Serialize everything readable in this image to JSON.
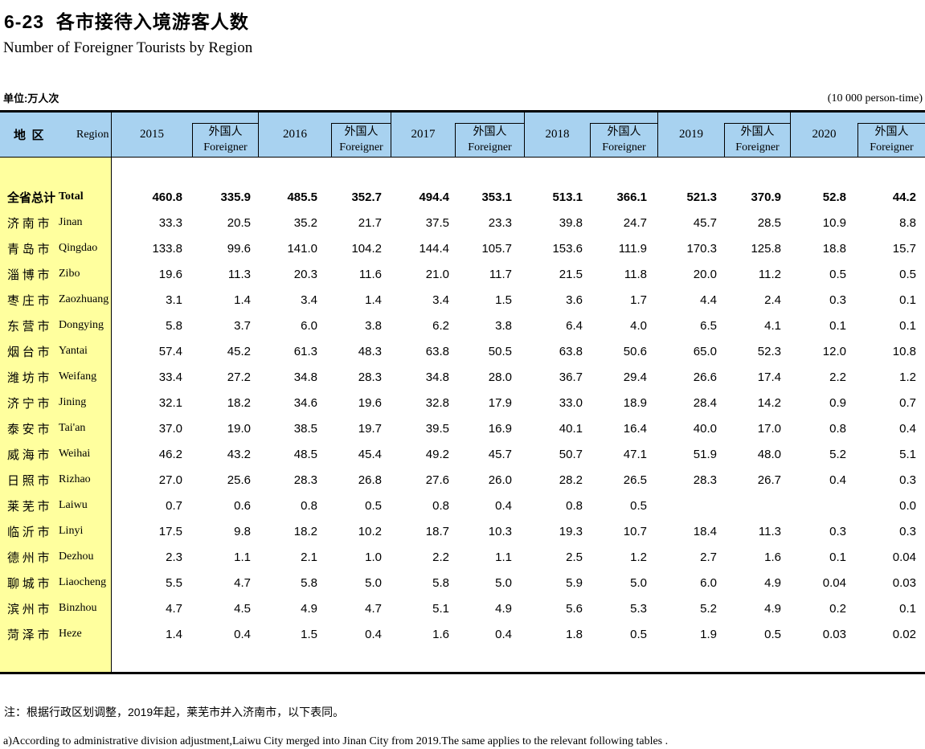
{
  "page": {
    "title_cn": "6-23  各市接待入境游客人数",
    "title_en": "Number of Foreigner Tourists by Region",
    "unit_left": "单位:万人次",
    "unit_right": "(10 000 person-time)",
    "note_cn": "注：根据行政区划调整，2019年起，莱芜市并入济南市，以下表同。",
    "note_en": "a)According to administrative division adjustment,Laiwu City merged into Jinan City from 2019.The same applies to the relevant following tables ."
  },
  "colors": {
    "header_bg": "#a8d2f0",
    "region_bg": "#ffff9e",
    "rule": "#000000"
  },
  "table": {
    "region_header": {
      "cn": "地  区",
      "en": "Region"
    },
    "year_groups": [
      {
        "year": "2015",
        "foreigner_cn": "外国人",
        "foreigner_en": "Foreigner"
      },
      {
        "year": "2016",
        "foreigner_cn": "外国人",
        "foreigner_en": "Foreigner"
      },
      {
        "year": "2017",
        "foreigner_cn": "外国人",
        "foreigner_en": "Foreigner"
      },
      {
        "year": "2018",
        "foreigner_cn": "外国人",
        "foreigner_en": "Foreigner"
      },
      {
        "year": "2019",
        "foreigner_cn": "外国人",
        "foreigner_en": "Foreigner"
      },
      {
        "year": "2020",
        "foreigner_cn": "外国人",
        "foreigner_en": "Foreigner"
      }
    ],
    "rows": [
      {
        "region_cn": "全省总计",
        "region_en": "Total",
        "bold": true,
        "values": [
          "460.8",
          "335.9",
          "485.5",
          "352.7",
          "494.4",
          "353.1",
          "513.1",
          "366.1",
          "521.3",
          "370.9",
          "52.8",
          "44.2"
        ]
      },
      {
        "region_cn": "济 南 市",
        "region_en": "Jinan",
        "bold": false,
        "values": [
          "33.3",
          "20.5",
          "35.2",
          "21.7",
          "37.5",
          "23.3",
          "39.8",
          "24.7",
          "45.7",
          "28.5",
          "10.9",
          "8.8"
        ]
      },
      {
        "region_cn": "青 岛 市",
        "region_en": "Qingdao",
        "bold": false,
        "values": [
          "133.8",
          "99.6",
          "141.0",
          "104.2",
          "144.4",
          "105.7",
          "153.6",
          "111.9",
          "170.3",
          "125.8",
          "18.8",
          "15.7"
        ]
      },
      {
        "region_cn": "淄 博 市",
        "region_en": "Zibo",
        "bold": false,
        "values": [
          "19.6",
          "11.3",
          "20.3",
          "11.6",
          "21.0",
          "11.7",
          "21.5",
          "11.8",
          "20.0",
          "11.2",
          "0.5",
          "0.5"
        ]
      },
      {
        "region_cn": "枣 庄 市",
        "region_en": "Zaozhuang",
        "bold": false,
        "values": [
          "3.1",
          "1.4",
          "3.4",
          "1.4",
          "3.4",
          "1.5",
          "3.6",
          "1.7",
          "4.4",
          "2.4",
          "0.3",
          "0.1"
        ]
      },
      {
        "region_cn": "东 营 市",
        "region_en": "Dongying",
        "bold": false,
        "values": [
          "5.8",
          "3.7",
          "6.0",
          "3.8",
          "6.2",
          "3.8",
          "6.4",
          "4.0",
          "6.5",
          "4.1",
          "0.1",
          "0.1"
        ]
      },
      {
        "region_cn": "烟 台 市",
        "region_en": "Yantai",
        "bold": false,
        "values": [
          "57.4",
          "45.2",
          "61.3",
          "48.3",
          "63.8",
          "50.5",
          "63.8",
          "50.6",
          "65.0",
          "52.3",
          "12.0",
          "10.8"
        ]
      },
      {
        "region_cn": "潍 坊 市",
        "region_en": "Weifang",
        "bold": false,
        "values": [
          "33.4",
          "27.2",
          "34.8",
          "28.3",
          "34.8",
          "28.0",
          "36.7",
          "29.4",
          "26.6",
          "17.4",
          "2.2",
          "1.2"
        ]
      },
      {
        "region_cn": "济 宁 市",
        "region_en": "Jining",
        "bold": false,
        "values": [
          "32.1",
          "18.2",
          "34.6",
          "19.6",
          "32.8",
          "17.9",
          "33.0",
          "18.9",
          "28.4",
          "14.2",
          "0.9",
          "0.7"
        ]
      },
      {
        "region_cn": "泰 安 市",
        "region_en": "Tai'an",
        "bold": false,
        "values": [
          "37.0",
          "19.0",
          "38.5",
          "19.7",
          "39.5",
          "16.9",
          "40.1",
          "16.4",
          "40.0",
          "17.0",
          "0.8",
          "0.4"
        ]
      },
      {
        "region_cn": "威 海 市",
        "region_en": "Weihai",
        "bold": false,
        "values": [
          "46.2",
          "43.2",
          "48.5",
          "45.4",
          "49.2",
          "45.7",
          "50.7",
          "47.1",
          "51.9",
          "48.0",
          "5.2",
          "5.1"
        ]
      },
      {
        "region_cn": "日 照 市",
        "region_en": "Rizhao",
        "bold": false,
        "values": [
          "27.0",
          "25.6",
          "28.3",
          "26.8",
          "27.6",
          "26.0",
          "28.2",
          "26.5",
          "28.3",
          "26.7",
          "0.4",
          "0.3"
        ]
      },
      {
        "region_cn": "莱 芜 市",
        "region_en": "Laiwu",
        "bold": false,
        "values": [
          "0.7",
          "0.6",
          "0.8",
          "0.5",
          "0.8",
          "0.4",
          "0.8",
          "0.5",
          "",
          "",
          "",
          "0.0"
        ]
      },
      {
        "region_cn": "临 沂 市",
        "region_en": "Linyi",
        "bold": false,
        "values": [
          "17.5",
          "9.8",
          "18.2",
          "10.2",
          "18.7",
          "10.3",
          "19.3",
          "10.7",
          "18.4",
          "11.3",
          "0.3",
          "0.3"
        ]
      },
      {
        "region_cn": "德 州 市",
        "region_en": "Dezhou",
        "bold": false,
        "values": [
          "2.3",
          "1.1",
          "2.1",
          "1.0",
          "2.2",
          "1.1",
          "2.5",
          "1.2",
          "2.7",
          "1.6",
          "0.1",
          "0.04"
        ]
      },
      {
        "region_cn": "聊 城 市",
        "region_en": "Liaocheng",
        "bold": false,
        "values": [
          "5.5",
          "4.7",
          "5.8",
          "5.0",
          "5.8",
          "5.0",
          "5.9",
          "5.0",
          "6.0",
          "4.9",
          "0.04",
          "0.03"
        ]
      },
      {
        "region_cn": "滨 州 市",
        "region_en": "Binzhou",
        "bold": false,
        "values": [
          "4.7",
          "4.5",
          "4.9",
          "4.7",
          "5.1",
          "4.9",
          "5.6",
          "5.3",
          "5.2",
          "4.9",
          "0.2",
          "0.1"
        ]
      },
      {
        "region_cn": "菏 泽 市",
        "region_en": "Heze",
        "bold": false,
        "values": [
          "1.4",
          "0.4",
          "1.5",
          "0.4",
          "1.6",
          "0.4",
          "1.8",
          "0.5",
          "1.9",
          "0.5",
          "0.03",
          "0.02"
        ]
      }
    ]
  }
}
